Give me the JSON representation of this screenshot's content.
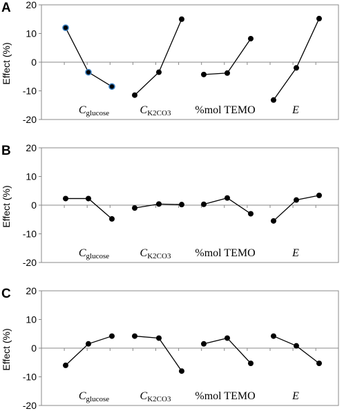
{
  "panel_labels": [
    "A",
    "B",
    "C"
  ],
  "chart_data": [
    {
      "type": "line",
      "panel": "A",
      "ylabel": "Effect (%)",
      "ylim": [
        -20,
        20
      ],
      "yticks": [
        20,
        10,
        0,
        -10,
        -20
      ],
      "grid": false,
      "groups": [
        {
          "label_main": "C",
          "label_sub": "glucose",
          "label_italic": true,
          "values": [
            12.0,
            -3.5,
            -8.5
          ],
          "highlight": true
        },
        {
          "label_main": "C",
          "label_sub": "K2CO3",
          "label_italic": true,
          "values": [
            -11.5,
            -3.5,
            15.0
          ]
        },
        {
          "label_main": "%mol TEMO",
          "label_sub": "",
          "label_italic": false,
          "values": [
            -4.3,
            -3.8,
            8.2
          ]
        },
        {
          "label_main": "E",
          "label_sub": "",
          "label_italic": true,
          "values": [
            -13.2,
            -2.0,
            15.2
          ]
        }
      ]
    },
    {
      "type": "line",
      "panel": "B",
      "ylabel": "Effect (%)",
      "ylim": [
        -20,
        20
      ],
      "yticks": [
        20,
        10,
        0,
        -10,
        -20
      ],
      "grid": false,
      "groups": [
        {
          "label_main": "C",
          "label_sub": "glucose",
          "label_italic": true,
          "values": [
            2.3,
            2.3,
            -4.8
          ]
        },
        {
          "label_main": "C",
          "label_sub": "K2CO3",
          "label_italic": true,
          "values": [
            -1.0,
            0.4,
            0.2
          ]
        },
        {
          "label_main": "%mol TEMO",
          "label_sub": "",
          "label_italic": false,
          "values": [
            0.3,
            2.5,
            -3.0
          ]
        },
        {
          "label_main": "E",
          "label_sub": "",
          "label_italic": true,
          "values": [
            -5.5,
            1.8,
            3.4
          ]
        }
      ]
    },
    {
      "type": "line",
      "panel": "C",
      "ylabel": "Effect (%)",
      "ylim": [
        -20,
        20
      ],
      "yticks": [
        20,
        10,
        0,
        -10,
        -20
      ],
      "grid": false,
      "groups": [
        {
          "label_main": "C",
          "label_sub": "glucose",
          "label_italic": true,
          "values": [
            -6.0,
            1.5,
            4.2
          ]
        },
        {
          "label_main": "C",
          "label_sub": "K2CO3",
          "label_italic": true,
          "values": [
            4.2,
            3.5,
            -8.0
          ]
        },
        {
          "label_main": "%mol TEMO",
          "label_sub": "",
          "label_italic": false,
          "values": [
            1.5,
            3.5,
            -5.3
          ]
        },
        {
          "label_main": "E",
          "label_sub": "",
          "label_italic": true,
          "values": [
            4.2,
            0.8,
            -5.3
          ]
        }
      ]
    }
  ]
}
